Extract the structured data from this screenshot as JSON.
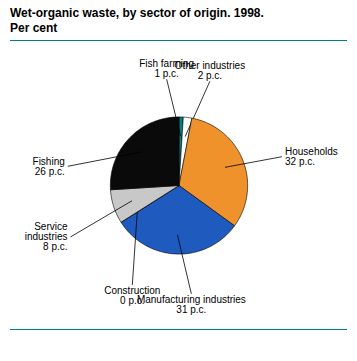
{
  "chart_data": {
    "type": "pie",
    "title": "Wet-organic waste, by sector of origin. 1998.",
    "subtitle": "Per cent",
    "categories": [
      "Fish farming",
      "Other industries",
      "Households",
      "Manufacturing industries",
      "Construction",
      "Service industries",
      "Fishing"
    ],
    "values": [
      1,
      2,
      32,
      31,
      0,
      8,
      26
    ],
    "value_labels": [
      "1 p.c.",
      "2 p.c.",
      "32 p.c.",
      "31 p.c.",
      "0 p.c.",
      "8 p.c.",
      "26 p.c."
    ],
    "colors": [
      "#008080",
      "#ffffff",
      "#f0922b",
      "#1f5bbf",
      "#c8c8c8",
      "#c8c8c8",
      "#0a0a0a"
    ],
    "data_labels": true
  }
}
